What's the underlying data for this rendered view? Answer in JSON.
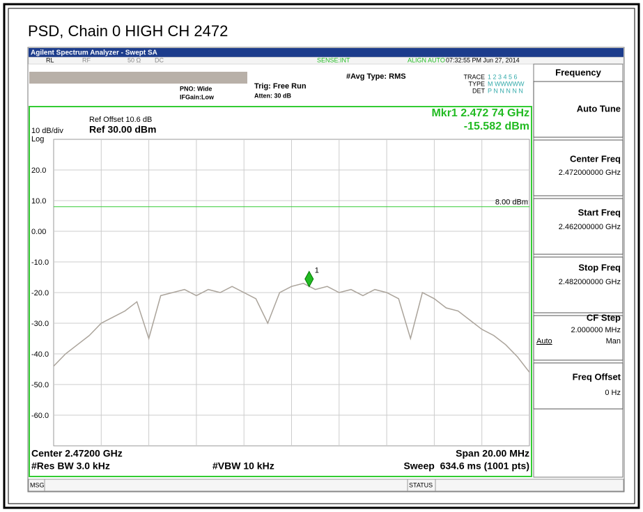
{
  "header": {
    "title": "PSD, Chain 0 HIGH CH 2472",
    "app_title": "Agilent Spectrum Analyzer - Swept SA"
  },
  "status": {
    "rl": "RL",
    "rf": "RF",
    "impedance": "50 Ω",
    "coupling": "DC",
    "sense": "SENSE:INT",
    "align": "ALIGN AUTO",
    "time": "07:32:55 PM Jun 27, 2014"
  },
  "settings": {
    "pno": "PNO: Wide",
    "ifgain": "IFGain:Low",
    "trig": "Trig: Free Run",
    "atten": "Atten: 30 dB",
    "avg": "#Avg Type: RMS",
    "trace_label": "TRACE",
    "trace_nums": "1 2 3 4 5 6",
    "type_label": "TYPE",
    "type_vals": "M WWWWW",
    "det_label": "DET",
    "det_vals": "P N N N N N"
  },
  "plot_texts": {
    "ref_offset": "Ref Offset 10.6 dB",
    "ref_level": "Ref 30.00 dBm",
    "scale": "10 dB/div",
    "log": "Log",
    "marker_freq": "Mkr1 2.472 74 GHz",
    "marker_level": "-15.582 dBm"
  },
  "footer": {
    "center": "Center 2.47200 GHz",
    "span": "Span 20.00 MHz",
    "rbw": "#Res BW 3.0 kHz",
    "vbw": "#VBW 10 kHz",
    "sweep": "Sweep  634.6 ms (1001 pts)"
  },
  "softkeys": {
    "menu": "Frequency",
    "auto_tune": "Auto Tune",
    "center": {
      "label": "Center Freq",
      "value": "2.472000000 GHz"
    },
    "start": {
      "label": "Start Freq",
      "value": "2.462000000 GHz"
    },
    "stop": {
      "label": "Stop Freq",
      "value": "2.482000000 GHz"
    },
    "cf_step": {
      "label": "CF Step",
      "value": "2.000000 MHz",
      "auto": "Auto",
      "man": "Man"
    },
    "offset": {
      "label": "Freq Offset",
      "value": "0 Hz"
    }
  },
  "bottom": {
    "msg": "MSG",
    "status": "STATUS"
  },
  "chart_data": {
    "type": "line",
    "xlim": [
      2.462,
      2.482
    ],
    "ylim": [
      -70,
      30
    ],
    "yticks": [
      {
        "value": 20,
        "label": "20.0"
      },
      {
        "value": 10,
        "label": "10.0"
      },
      {
        "value": 0,
        "label": "0.00"
      },
      {
        "value": -10,
        "label": "-10.0"
      },
      {
        "value": -20,
        "label": "-20.0"
      },
      {
        "value": -30,
        "label": "-30.0"
      },
      {
        "value": -40,
        "label": "-40.0"
      },
      {
        "value": -50,
        "label": "-50.0"
      },
      {
        "value": -60,
        "label": "-60.0"
      }
    ],
    "x": [
      2.462,
      2.4625,
      2.463,
      2.4635,
      2.464,
      2.4645,
      2.465,
      2.4655,
      2.466,
      2.4665,
      2.467,
      2.4675,
      2.468,
      2.4685,
      2.469,
      2.4695,
      2.47,
      2.4705,
      2.471,
      2.4715,
      2.472,
      2.4725,
      2.473,
      2.4735,
      2.474,
      2.4745,
      2.475,
      2.4755,
      2.476,
      2.4765,
      2.477,
      2.4775,
      2.478,
      2.4785,
      2.479,
      2.4795,
      2.48,
      2.4805,
      2.481,
      2.4815,
      2.482
    ],
    "series": [
      {
        "color": "#aaa39a",
        "values": [
          -44,
          -40,
          -37,
          -34,
          -30,
          -28,
          -26,
          -23,
          -35,
          -21,
          -20,
          -19,
          -21,
          -19,
          -20,
          -18,
          -20,
          -22,
          -30,
          -20,
          -18,
          -17,
          -19,
          -18,
          -20,
          -19,
          -21,
          -19,
          -20,
          -22,
          -35,
          -20,
          -22,
          -25,
          -26,
          -29,
          -32,
          -34,
          -37,
          -41,
          -46
        ]
      }
    ],
    "display_line": {
      "value": 8,
      "label": "8.00 dBm",
      "color": "#33cc33"
    },
    "marker": {
      "name": "1",
      "x": 2.47274,
      "y": -15.582,
      "color": "#22bb22"
    }
  }
}
